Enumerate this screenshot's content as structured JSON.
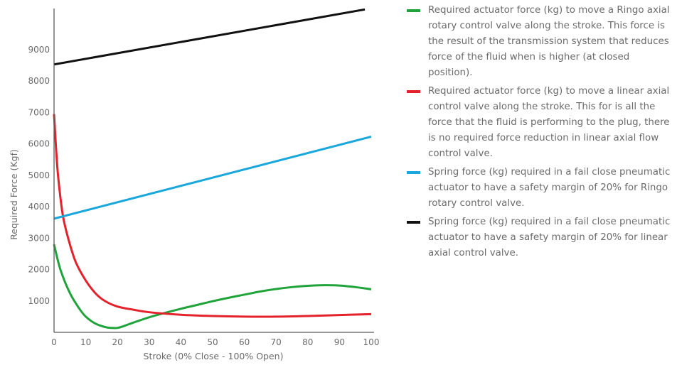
{
  "chart_data": {
    "type": "line",
    "xlabel": "Stroke (0% Close - 100% Open)",
    "ylabel": "Required Force (Kgf)",
    "xlim": [
      0,
      100
    ],
    "ylim": [
      0,
      10400
    ],
    "x_ticks": [
      0,
      10,
      20,
      30,
      40,
      50,
      60,
      70,
      80,
      90,
      100
    ],
    "y_ticks": [
      1000,
      2000,
      3000,
      4000,
      5000,
      6000,
      7000,
      8000,
      9000
    ],
    "grid": false,
    "legend_position": "right",
    "series": [
      {
        "name": "Required actuator force (kg) to move a Ringo axial rotary control valve along the stroke. This force is the result of the transmission system that reduces force of the fluid when is higher (at closed position).",
        "color": "#1fa33a",
        "x": [
          0,
          2,
          5,
          8,
          10,
          13,
          16,
          18,
          20,
          22,
          25,
          30,
          35,
          40,
          45,
          50,
          55,
          60,
          65,
          70,
          75,
          80,
          85,
          90,
          95,
          100
        ],
        "y": [
          2800,
          2000,
          1250,
          750,
          500,
          280,
          170,
          140,
          140,
          200,
          310,
          480,
          620,
          750,
          870,
          990,
          1100,
          1200,
          1300,
          1380,
          1440,
          1480,
          1500,
          1490,
          1440,
          1370
        ]
      },
      {
        "name": "Required actuator force (kg) to move a linear axial control valve along the stroke. This for is all the force that the fluid is performing to the plug, there is no required force reduction in linear axial flow control valve.",
        "color": "#e3222b",
        "x": [
          0,
          1,
          2,
          3,
          5,
          7,
          10,
          13,
          16,
          20,
          25,
          30,
          40,
          50,
          60,
          70,
          80,
          90,
          100
        ],
        "y": [
          6950,
          5300,
          4300,
          3600,
          2800,
          2200,
          1650,
          1250,
          1000,
          820,
          720,
          640,
          560,
          520,
          500,
          500,
          520,
          550,
          580
        ]
      },
      {
        "name": "Spring force (kg)  required in a fail close pneumatic actuator to have a safety margin of 20% for Ringo rotary control valve.",
        "color": "#1aa7dc",
        "x": [
          0,
          100
        ],
        "y": [
          3620,
          6230
        ]
      },
      {
        "name": "Spring force (kg) required in a fail close pneumatic actuator to have a safety margin of 20% for linear axial control valve.",
        "color": "#111111",
        "x": [
          0,
          98
        ],
        "y": [
          8530,
          10280
        ]
      }
    ]
  }
}
